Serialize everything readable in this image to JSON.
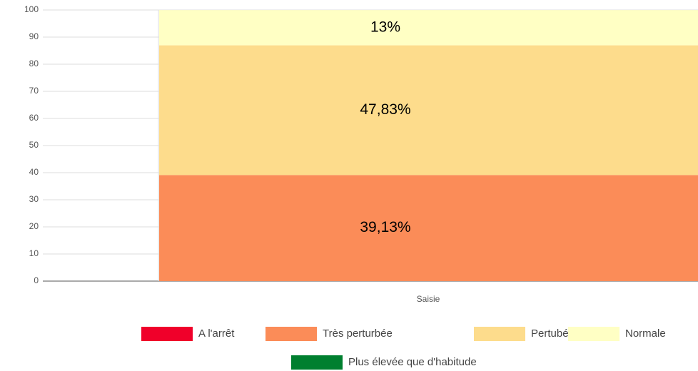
{
  "chart_data": {
    "type": "stacked_bar",
    "categories": [
      "Saisie"
    ],
    "series": [
      {
        "name": "A l'arrêt",
        "color": "#f0002a",
        "values": [
          0
        ]
      },
      {
        "name": "Très perturbée",
        "color": "#fb8c58",
        "values": [
          39.13
        ],
        "value_labels": [
          "39,13%"
        ]
      },
      {
        "name": "Pertubée",
        "color": "#fddc8c",
        "values": [
          47.83
        ],
        "value_labels": [
          "47,83%"
        ]
      },
      {
        "name": "Normale",
        "color": "#ffffc4",
        "values": [
          13
        ],
        "value_labels": [
          "13%"
        ]
      },
      {
        "name": "Plus élevée que d'habitude",
        "color": "#007f2f",
        "values": [
          0
        ]
      }
    ],
    "ylim": [
      0,
      100
    ],
    "yticks": [
      0,
      10,
      20,
      30,
      40,
      50,
      60,
      70,
      80,
      90,
      100
    ],
    "grid": true
  }
}
